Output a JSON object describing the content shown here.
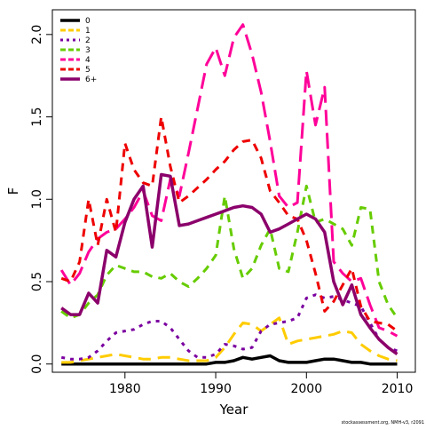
{
  "chart_data": {
    "type": "line",
    "xlabel": "Year",
    "ylabel": "F",
    "xlim": [
      1972,
      2012
    ],
    "ylim": [
      -0.05,
      2.15
    ],
    "xticks": [
      1980,
      1990,
      2000,
      2010
    ],
    "yticks": [
      0.0,
      0.5,
      1.0,
      1.5,
      2.0
    ],
    "ytick_labels": [
      "0.0",
      "0.5",
      "1.0",
      "1.5",
      "2.0"
    ],
    "legend_position": "top-left",
    "credit": "stockassessment.org, NMH-v3, r2091",
    "x": [
      1973,
      1974,
      1975,
      1976,
      1977,
      1978,
      1979,
      1980,
      1981,
      1982,
      1983,
      1984,
      1985,
      1986,
      1987,
      1988,
      1989,
      1990,
      1991,
      1992,
      1993,
      1994,
      1995,
      1996,
      1997,
      1998,
      1999,
      2000,
      2001,
      2002,
      2003,
      2004,
      2005,
      2006,
      2007,
      2008,
      2009,
      2010
    ],
    "series": [
      {
        "name": "0",
        "color": "#000000",
        "dash": "solid",
        "width": 3.5,
        "values": [
          0.0,
          0.0,
          0.0,
          0.0,
          0.0,
          0.0,
          0.0,
          0.0,
          0.0,
          0.0,
          0.0,
          0.0,
          0.0,
          0.0,
          0.0,
          0.0,
          0.0,
          0.01,
          0.01,
          0.02,
          0.04,
          0.03,
          0.04,
          0.05,
          0.02,
          0.01,
          0.01,
          0.01,
          0.02,
          0.03,
          0.03,
          0.02,
          0.01,
          0.01,
          0.0,
          0.0,
          0.0,
          0.0
        ]
      },
      {
        "name": "1",
        "color": "#FFCC00",
        "dash": "long",
        "width": 3,
        "values": [
          0.01,
          0.01,
          0.02,
          0.03,
          0.04,
          0.05,
          0.06,
          0.05,
          0.04,
          0.03,
          0.03,
          0.04,
          0.04,
          0.03,
          0.02,
          0.02,
          0.02,
          0.04,
          0.1,
          0.18,
          0.25,
          0.24,
          0.2,
          0.24,
          0.28,
          0.12,
          0.14,
          0.15,
          0.16,
          0.17,
          0.18,
          0.2,
          0.19,
          0.12,
          0.08,
          0.05,
          0.03,
          0.02
        ]
      },
      {
        "name": "2",
        "color": "#7B00A0",
        "dash": "dotted",
        "width": 3,
        "values": [
          0.04,
          0.03,
          0.03,
          0.04,
          0.08,
          0.14,
          0.19,
          0.2,
          0.21,
          0.24,
          0.26,
          0.26,
          0.22,
          0.15,
          0.08,
          0.04,
          0.04,
          0.06,
          0.12,
          0.11,
          0.09,
          0.1,
          0.2,
          0.24,
          0.25,
          0.26,
          0.28,
          0.4,
          0.42,
          0.4,
          0.41,
          0.39,
          0.37,
          0.35,
          0.25,
          0.15,
          0.1,
          0.08
        ]
      },
      {
        "name": "3",
        "color": "#66CC00",
        "dash": "dashed",
        "width": 3,
        "values": [
          0.32,
          0.28,
          0.3,
          0.37,
          0.42,
          0.54,
          0.6,
          0.58,
          0.56,
          0.56,
          0.53,
          0.52,
          0.55,
          0.5,
          0.47,
          0.52,
          0.58,
          0.66,
          1.02,
          0.7,
          0.52,
          0.58,
          0.72,
          0.82,
          0.58,
          0.56,
          0.8,
          1.08,
          0.86,
          0.88,
          0.85,
          0.82,
          0.72,
          0.95,
          0.94,
          0.5,
          0.36,
          0.28
        ]
      },
      {
        "name": "4",
        "color": "#FF0099",
        "dash": "longdash",
        "width": 3,
        "values": [
          0.57,
          0.48,
          0.55,
          0.68,
          0.76,
          0.8,
          0.82,
          0.88,
          0.95,
          1.05,
          0.9,
          0.87,
          1.12,
          1.02,
          1.28,
          1.55,
          1.82,
          1.92,
          1.75,
          1.98,
          2.06,
          1.88,
          1.65,
          1.35,
          1.02,
          0.95,
          0.98,
          1.78,
          1.45,
          1.68,
          0.62,
          0.55,
          0.5,
          0.52,
          0.36,
          0.22,
          0.2,
          0.17
        ]
      },
      {
        "name": "5",
        "color": "#EE0000",
        "dash": "dashed",
        "width": 3,
        "values": [
          0.52,
          0.5,
          0.62,
          1.0,
          0.72,
          1.0,
          0.8,
          1.34,
          1.18,
          1.1,
          1.08,
          1.5,
          1.2,
          0.98,
          1.02,
          1.07,
          1.12,
          1.18,
          1.23,
          1.3,
          1.35,
          1.36,
          1.25,
          1.05,
          0.98,
          0.9,
          0.88,
          0.75,
          0.55,
          0.32,
          0.38,
          0.48,
          0.58,
          0.35,
          0.26,
          0.25,
          0.24,
          0.2
        ]
      },
      {
        "name": "6+",
        "color": "#8B006B",
        "dash": "solid",
        "width": 3.5,
        "values": [
          0.34,
          0.3,
          0.3,
          0.43,
          0.37,
          0.69,
          0.65,
          0.86,
          1.0,
          1.08,
          0.71,
          1.15,
          1.14,
          0.84,
          0.85,
          0.87,
          0.89,
          0.91,
          0.93,
          0.95,
          0.96,
          0.95,
          0.91,
          0.8,
          0.82,
          0.85,
          0.88,
          0.91,
          0.88,
          0.8,
          0.5,
          0.36,
          0.48,
          0.3,
          0.22,
          0.15,
          0.1,
          0.06
        ]
      }
    ]
  }
}
